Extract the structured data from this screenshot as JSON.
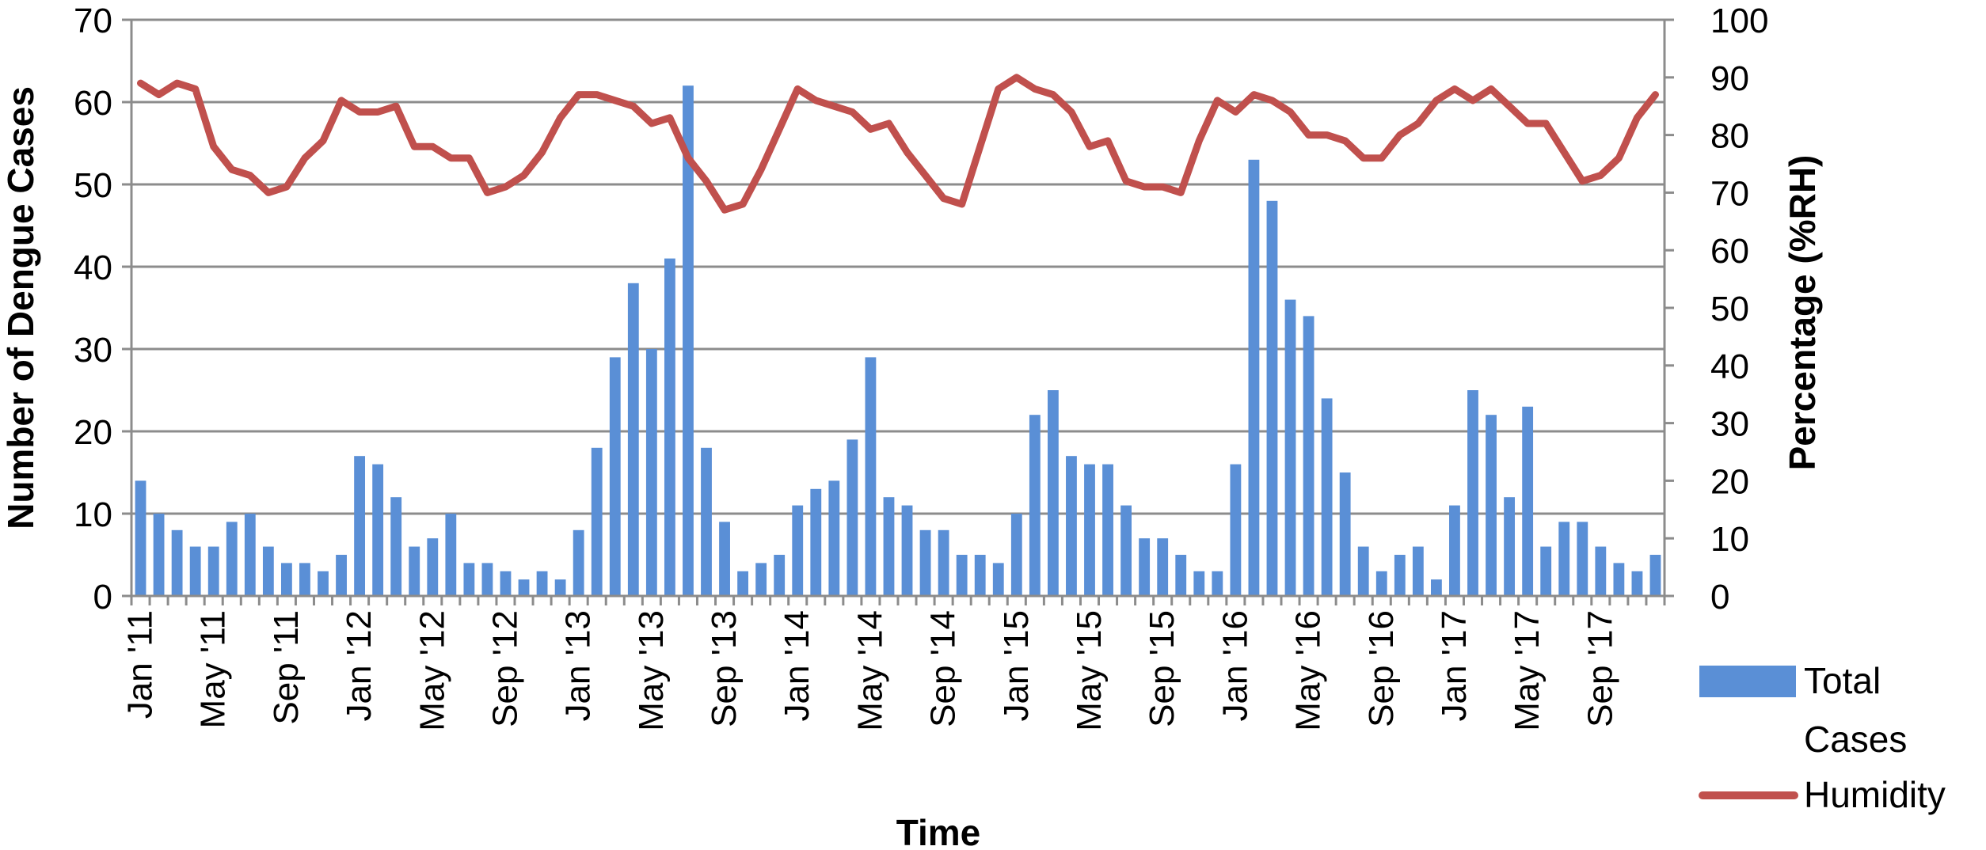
{
  "chart_data": {
    "type": "bar+line",
    "x_label": "Time",
    "y_left_label": "Number of Dengue Cases",
    "y_right_label": "Percentage (%RH)",
    "y_left_range": [
      0,
      70
    ],
    "y_left_ticks": [
      "0",
      "10",
      "20",
      "30",
      "40",
      "50",
      "60",
      "70"
    ],
    "y_right_range": [
      0,
      100
    ],
    "y_right_ticks": [
      "0",
      "10",
      "20",
      "30",
      "40",
      "50",
      "60",
      "70",
      "80",
      "90",
      "100"
    ],
    "x_tick_labels": [
      "Jan '11",
      "May '11",
      "Sep '11",
      "Jan '12",
      "May '12",
      "Sep '12",
      "Jan '13",
      "May '13",
      "Sep '13",
      "Jan '14",
      "May '14",
      "Sep '14",
      "Jan '15",
      "May '15",
      "Sep '15",
      "Jan '16",
      "May '16",
      "Sep '16",
      "Jan '17",
      "May '17",
      "Sep '17"
    ],
    "x_tick_interval_months": 4,
    "grid": true,
    "colors": {
      "bars": "#5a8fd6",
      "line": "#c0504d",
      "grid": "#8c8c8c"
    },
    "legend_position": "bottom-right",
    "series": [
      {
        "name": "Total Cases",
        "axis": "left",
        "kind": "bar",
        "values": [
          14,
          10,
          8,
          6,
          6,
          9,
          10,
          6,
          4,
          4,
          3,
          5,
          17,
          16,
          12,
          6,
          7,
          10,
          4,
          4,
          3,
          2,
          3,
          2,
          8,
          18,
          29,
          38,
          30,
          41,
          62,
          18,
          9,
          3,
          4,
          5,
          11,
          13,
          14,
          19,
          29,
          12,
          11,
          8,
          8,
          5,
          5,
          4,
          10,
          22,
          25,
          17,
          16,
          16,
          11,
          7,
          7,
          5,
          3,
          3,
          16,
          53,
          48,
          36,
          34,
          24,
          15,
          6,
          3,
          5,
          6,
          2,
          11,
          25,
          22,
          12,
          23,
          6,
          9,
          9,
          6,
          4,
          3,
          5
        ]
      },
      {
        "name": "Humidity",
        "axis": "right",
        "kind": "line",
        "values": [
          89,
          87,
          89,
          88,
          78,
          74,
          73,
          70,
          71,
          76,
          79,
          86,
          84,
          84,
          85,
          78,
          78,
          76,
          76,
          70,
          71,
          73,
          77,
          83,
          87,
          87,
          86,
          85,
          82,
          83,
          76,
          72,
          67,
          68,
          74,
          81,
          88,
          86,
          85,
          84,
          81,
          82,
          77,
          73,
          69,
          68,
          78,
          88,
          90,
          88,
          87,
          84,
          78,
          79,
          72,
          71,
          71,
          70,
          79,
          86,
          84,
          87,
          86,
          84,
          80,
          80,
          79,
          76,
          76,
          80,
          82,
          86,
          88,
          86,
          88,
          85,
          82,
          82,
          77,
          72,
          73,
          76,
          83,
          87
        ]
      }
    ]
  }
}
